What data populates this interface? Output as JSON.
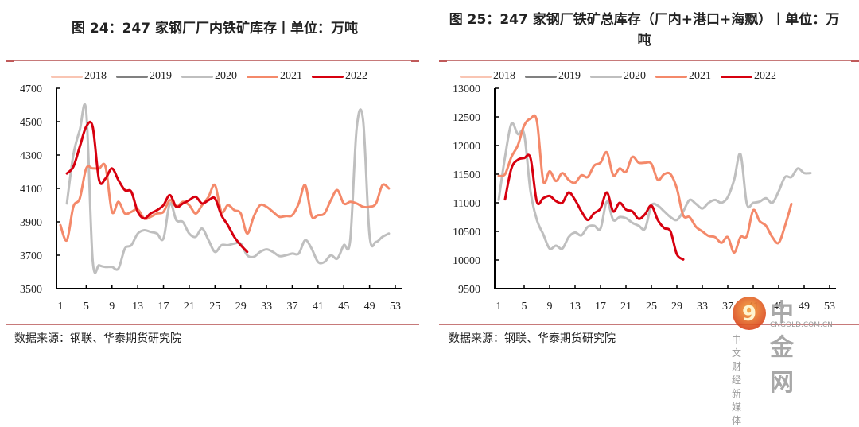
{
  "source_label": "数据来源：钢联、华泰期货研究院",
  "watermark": {
    "brand": "中金网",
    "domain": "CNGOLD.COM.CN",
    "tagline": "中 文 财 经 新 媒 体"
  },
  "legend": [
    {
      "name": "2018",
      "color": "#f9c5b3"
    },
    {
      "name": "2019",
      "color": "#808080"
    },
    {
      "name": "2020",
      "color": "#bfbfbf"
    },
    {
      "name": "2021",
      "color": "#f4896a"
    },
    {
      "name": "2022",
      "color": "#d7000f"
    }
  ],
  "chart_data": [
    {
      "type": "line",
      "title": "图 24：247 家钢厂厂内铁矿库存丨单位：万吨",
      "xlabel": "",
      "ylabel": "",
      "ylim": [
        3500,
        4700
      ],
      "yticks": [
        3500,
        3700,
        3900,
        4100,
        4300,
        4500,
        4700
      ],
      "xlim": [
        1,
        53
      ],
      "xticks": [
        1,
        5,
        9,
        13,
        17,
        21,
        25,
        29,
        33,
        37,
        41,
        45,
        49,
        53
      ],
      "legend_position": "top",
      "series": [
        {
          "name": "2020",
          "start_week": 2,
          "values": [
            4010,
            4300,
            4450,
            4560,
            3670,
            3640,
            3630,
            3630,
            3620,
            3740,
            3760,
            3830,
            3850,
            3840,
            3830,
            3800,
            4010,
            3910,
            3900,
            3830,
            3810,
            3860,
            3790,
            3720,
            3760,
            3760,
            3770,
            3770,
            3700,
            3690,
            3720,
            3735,
            3720,
            3695,
            3700,
            3710,
            3710,
            3790,
            3740,
            3660,
            3660,
            3700,
            3680,
            3760,
            3790,
            4460,
            4510,
            3820,
            3780,
            3810,
            3830
          ]
        },
        {
          "name": "2021",
          "start_week": 1,
          "values": [
            3880,
            3790,
            3990,
            4040,
            4220,
            4220,
            4220,
            4230,
            3960,
            4020,
            3950,
            3960,
            3975,
            3920,
            3930,
            3950,
            3960,
            4030,
            3990,
            4020,
            4000,
            3950,
            4000,
            4050,
            4120,
            3960,
            4000,
            3970,
            3950,
            3830,
            3930,
            4000,
            3990,
            3960,
            3930,
            3935,
            3940,
            4010,
            4120,
            3935,
            3940,
            3950,
            4030,
            4090,
            4010,
            4020,
            4010,
            3990,
            3990,
            4010,
            4120,
            4100
          ]
        },
        {
          "name": "2022",
          "start_week": 2,
          "values": [
            4190,
            4230,
            4350,
            4470,
            4470,
            4150,
            4160,
            4220,
            4150,
            4090,
            4080,
            3960,
            3920,
            3950,
            3970,
            4000,
            4060,
            3990,
            4010,
            4030,
            4050,
            4010,
            4030,
            4040,
            3940,
            3880,
            3810,
            3760,
            3720
          ]
        }
      ]
    },
    {
      "type": "line",
      "title": "图 25：247 家钢厂铁矿总库存（厂内+港口+海飘）丨单位：万吨",
      "xlabel": "",
      "ylabel": "",
      "ylim": [
        9500,
        13000
      ],
      "yticks": [
        9500,
        10000,
        10500,
        11000,
        11500,
        12000,
        12500,
        13000
      ],
      "xlim": [
        1,
        53
      ],
      "xticks": [
        1,
        5,
        9,
        13,
        17,
        21,
        25,
        29,
        33,
        37,
        41,
        45,
        49,
        53
      ],
      "legend_position": "top",
      "series": [
        {
          "name": "2020",
          "start_week": 1,
          "values": [
            11050,
            11800,
            12380,
            12200,
            12200,
            11200,
            10700,
            10450,
            10200,
            10250,
            10200,
            10400,
            10480,
            10430,
            10580,
            10600,
            10550,
            11020,
            10700,
            10750,
            10730,
            10650,
            10600,
            10550,
            10950,
            10950,
            10850,
            10750,
            10700,
            10850,
            11050,
            10980,
            10900,
            11000,
            11050,
            11000,
            11100,
            11400,
            11850,
            10980,
            11000,
            11020,
            11080,
            11000,
            11200,
            11450,
            11450,
            11600,
            11520,
            11520
          ]
        },
        {
          "name": "2021",
          "start_week": 1,
          "values": [
            11470,
            11500,
            11800,
            12000,
            12350,
            12470,
            12430,
            11380,
            11550,
            11380,
            11520,
            11400,
            11350,
            11480,
            11450,
            11650,
            11700,
            11880,
            11480,
            11600,
            11540,
            11800,
            11700,
            11700,
            11680,
            11400,
            11500,
            11500,
            11250,
            10780,
            10750,
            10580,
            10500,
            10420,
            10400,
            10300,
            10400,
            10130,
            10400,
            10420,
            10870,
            10680,
            10600,
            10400,
            10300,
            10600,
            10980
          ]
        },
        {
          "name": "2022",
          "start_week": 2,
          "values": [
            11060,
            11600,
            11750,
            11780,
            11780,
            11020,
            11080,
            11120,
            11030,
            11000,
            11180,
            11050,
            10850,
            10700,
            10820,
            10900,
            11180,
            10850,
            11000,
            10880,
            10850,
            10720,
            10800,
            10950,
            10700,
            10560,
            10500,
            10100,
            10010
          ]
        }
      ]
    }
  ]
}
